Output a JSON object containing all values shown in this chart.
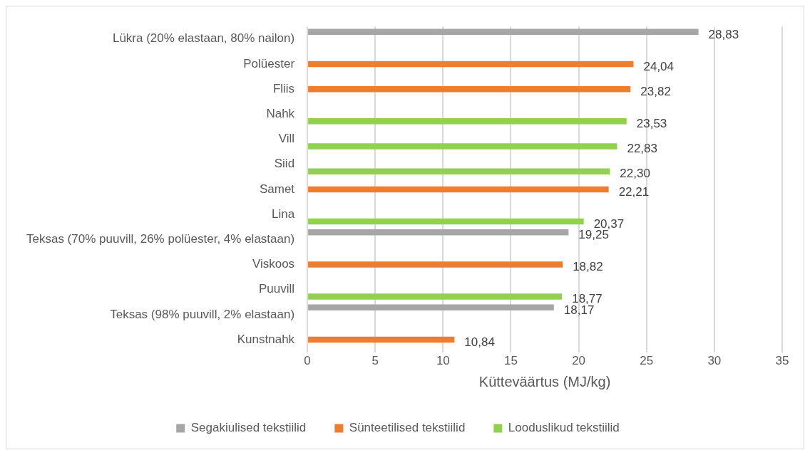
{
  "chart_data": {
    "type": "bar",
    "orientation": "horizontal",
    "xlabel": "Kütteväärtus (MJ/kg)",
    "categories": [
      "Lükra (20% elastaan, 80% nailon)",
      "Polüester",
      "Fliis",
      "Nahk",
      "Vill",
      "Siid",
      "Samet",
      "Lina",
      "Teksas (70% puuvill, 26% polüester, 4% elastaan)",
      "Viskoos",
      "Puuvill",
      "Teksas (98% puuvill, 2% elastaan)",
      "Kunstnahk"
    ],
    "series": [
      {
        "name": "Segakiulised tekstiilid",
        "color": "#a6a6a6",
        "values": [
          28.83,
          null,
          null,
          null,
          null,
          null,
          null,
          null,
          19.25,
          null,
          null,
          18.17,
          null
        ],
        "value_labels": [
          "28,83",
          null,
          null,
          null,
          null,
          null,
          null,
          null,
          "19,25",
          null,
          null,
          "18,17",
          null
        ]
      },
      {
        "name": "Sünteetilised tekstiilid",
        "color": "#ed7d31",
        "values": [
          null,
          24.04,
          23.82,
          null,
          null,
          null,
          22.21,
          null,
          null,
          18.82,
          null,
          null,
          10.84
        ],
        "value_labels": [
          null,
          "24,04",
          "23,82",
          null,
          null,
          null,
          "22,21",
          null,
          null,
          "18,82",
          null,
          null,
          "10,84"
        ]
      },
      {
        "name": "Looduslikud tekstiilid",
        "color": "#92d050",
        "values": [
          null,
          null,
          null,
          23.53,
          22.83,
          22.3,
          null,
          20.37,
          null,
          null,
          18.77,
          null,
          null
        ],
        "value_labels": [
          null,
          null,
          null,
          "23,53",
          "22,83",
          "22,30",
          null,
          "20,37",
          null,
          null,
          "18,77",
          null,
          null
        ]
      }
    ],
    "xlim": [
      0,
      35
    ],
    "xticks": [
      0,
      5,
      10,
      15,
      20,
      25,
      30,
      35
    ],
    "grid": "x",
    "legend": "bottom"
  }
}
